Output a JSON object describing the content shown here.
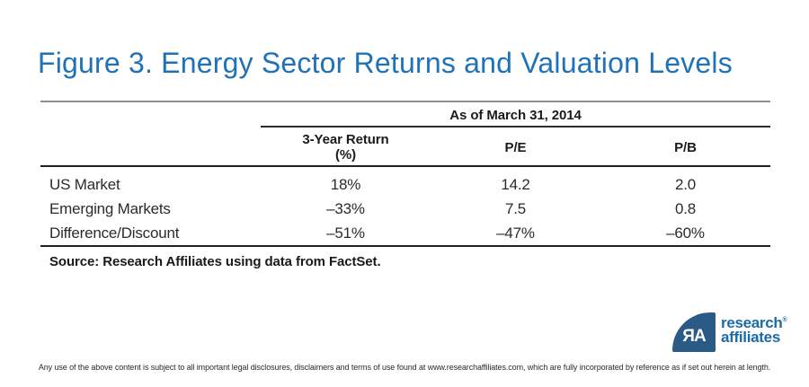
{
  "title": "Figure 3. Energy Sector Returns and Valuation Levels",
  "table": {
    "group_header": "As of March 31, 2014",
    "columns": [
      {
        "line1": "3-Year Return",
        "line2": "(%)"
      },
      {
        "line1": "P/E",
        "line2": ""
      },
      {
        "line1": "P/B",
        "line2": ""
      }
    ],
    "rows": [
      {
        "label": "US Market",
        "values": [
          "18%",
          "14.2",
          "2.0"
        ]
      },
      {
        "label": "Emerging Markets",
        "values": [
          "–33%",
          "7.5",
          "0.8"
        ]
      },
      {
        "label": "Difference/Discount",
        "values": [
          "–51%",
          "–47%",
          "–60%"
        ]
      }
    ],
    "source": "Source: Research Affiliates using data from FactSet."
  },
  "chart_data": {
    "type": "table",
    "title": "Figure 3. Energy Sector Returns and Valuation Levels",
    "group_header": "As of March 31, 2014",
    "columns": [
      "3-Year Return (%)",
      "P/E",
      "P/B"
    ],
    "rows": [
      [
        "US Market",
        "18%",
        "14.2",
        "2.0"
      ],
      [
        "Emerging Markets",
        "-33%",
        "7.5",
        "0.8"
      ],
      [
        "Difference/Discount",
        "-51%",
        "-47%",
        "-60%"
      ]
    ]
  },
  "logo": {
    "monogram": "ЯA",
    "line1": "research",
    "registered": "®",
    "line2": "affiliates"
  },
  "footer": {
    "disclaimer": "Any use of the above content is subject to all important legal disclosures, disclaimers and terms of use found at www.researchaffiliates.com, which are fully incorporated by reference as if set out herein at length."
  },
  "colors": {
    "title_blue": "#1F72B8",
    "logo_mark_navy": "#2A5A86",
    "logo_text_blue": "#1A6BA8",
    "rule_gray": "#8E8E8E",
    "rule_dark": "#1F1F1F",
    "body_text": "#2B2B2B"
  }
}
